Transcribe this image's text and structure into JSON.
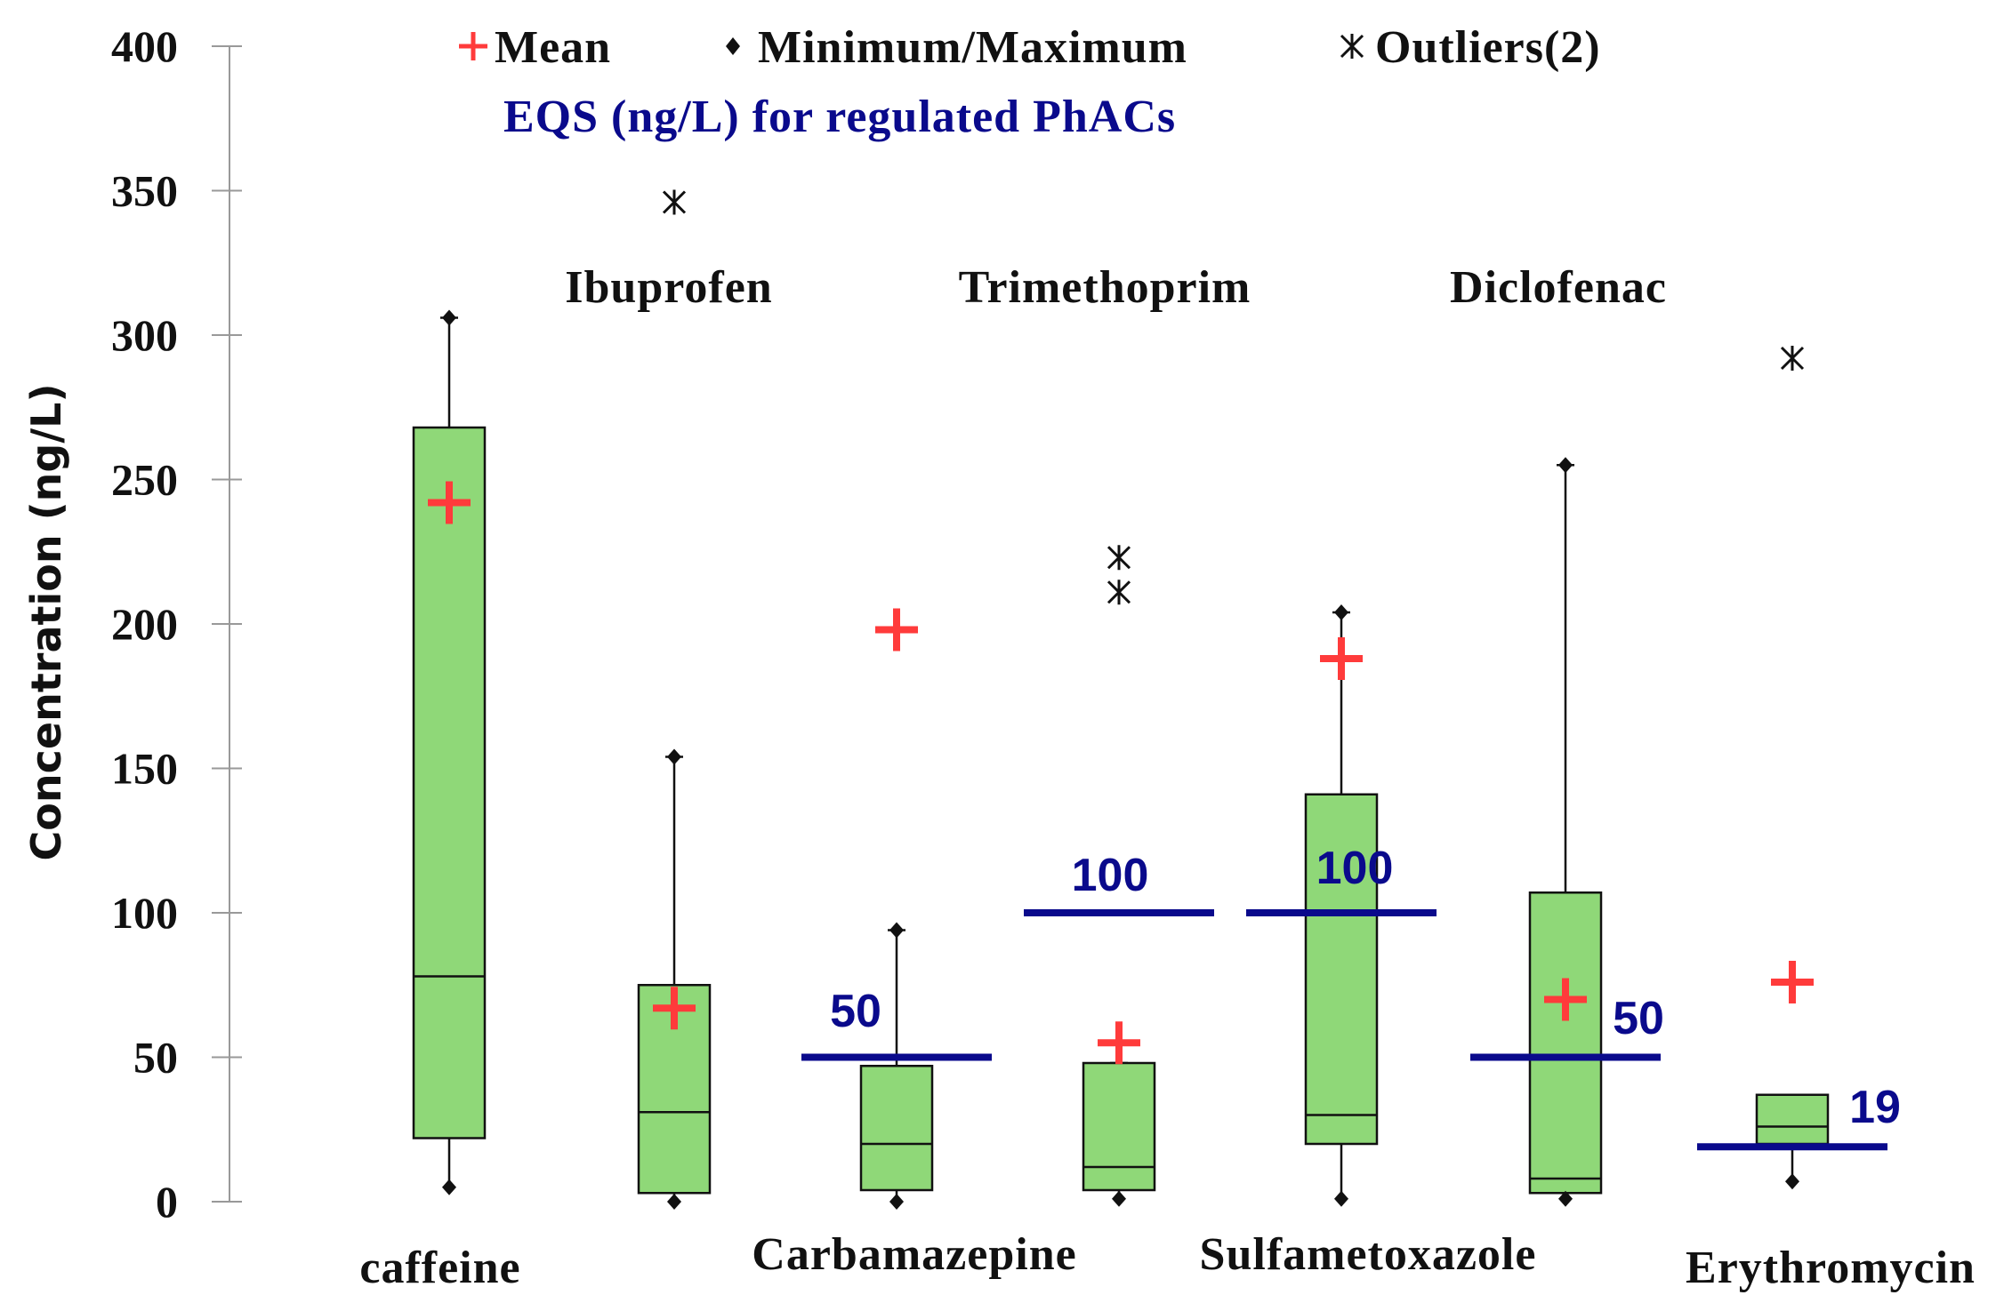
{
  "chart_data": {
    "type": "box",
    "ylabel": "Concentration (ng/L)",
    "ylim": [
      0,
      400
    ],
    "yticks": [
      "0",
      "50",
      "100",
      "150",
      "200",
      "250",
      "300",
      "350",
      "400"
    ],
    "legend": {
      "mean_label": "Mean",
      "minmax_label": "Minimum/Maximum",
      "outliers_label": "Outliers(2)",
      "eqs_title": "EQS (ng/L) for regulated PhACs"
    },
    "series": [
      {
        "name": "caffeine",
        "label_position": "bottom",
        "min": 5,
        "q1": 22,
        "median": 78,
        "q3": 268,
        "max": 306,
        "mean": 242,
        "outliers": [],
        "eqs": null
      },
      {
        "name": "Ibuprofen",
        "label_position": "top",
        "min": 0,
        "q1": 3,
        "median": 31,
        "q3": 75,
        "max": 154,
        "mean": 67,
        "outliers": [
          346
        ],
        "eqs": null
      },
      {
        "name": "Carbamazepine",
        "label_position": "bottom",
        "min": 0,
        "q1": 4,
        "median": 20,
        "q3": 47,
        "max": 94,
        "mean": 198,
        "outliers": [],
        "eqs": 50
      },
      {
        "name": "Trimethoprim",
        "label_position": "top",
        "min": 1,
        "q1": 4,
        "median": 12,
        "q3": 48,
        "max": 48,
        "mean": 55,
        "outliers": [
          223,
          211
        ],
        "eqs": 100
      },
      {
        "name": "Sulfametoxazole",
        "label_position": "bottom",
        "min": 1,
        "q1": 20,
        "median": 30,
        "q3": 141,
        "max": 204,
        "mean": 188,
        "outliers": [],
        "eqs": 100
      },
      {
        "name": "Diclofenac",
        "label_position": "top",
        "min": 1,
        "q1": 3,
        "median": 8,
        "q3": 107,
        "max": 255,
        "mean": 70,
        "outliers": [],
        "eqs": 50
      },
      {
        "name": "Erythromycin",
        "label_position": "bottom",
        "min": 7,
        "q1": 20,
        "median": 26,
        "q3": 37,
        "max": 37,
        "mean": 76,
        "outliers": [
          292
        ],
        "eqs": 19
      }
    ],
    "colors": {
      "box_fill": "#8fd878",
      "mean": "#ff3b3b",
      "eqs": "#0a0a8c",
      "ink": "#111111"
    }
  }
}
